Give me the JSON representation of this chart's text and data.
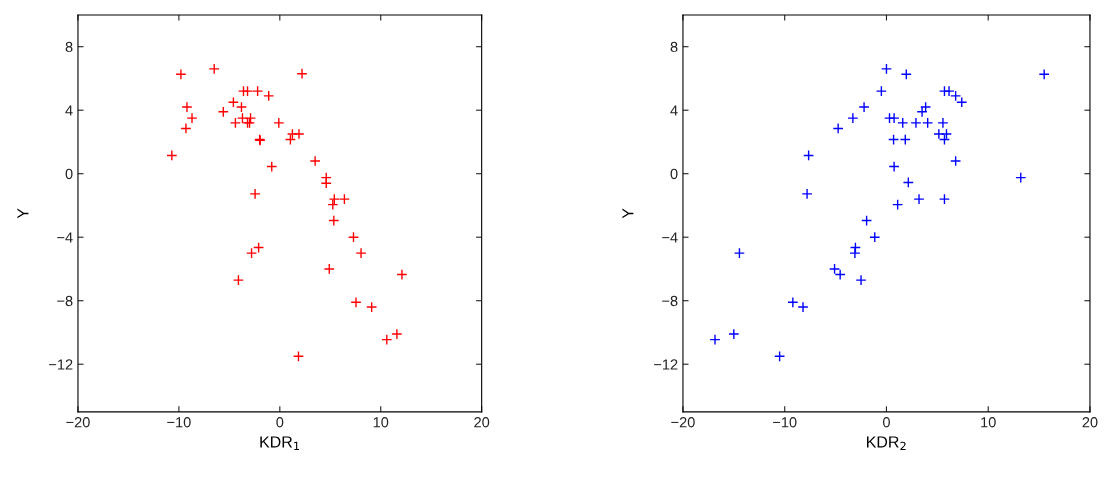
{
  "chart_data": [
    {
      "type": "scatter",
      "xlabel": "KDR$_{1}$",
      "ylabel": "Y",
      "marker": "cross",
      "grid": false,
      "legend": false,
      "xlim": [
        -20,
        20
      ],
      "ylim": [
        -15,
        10
      ],
      "xticks": [
        -20,
        -10,
        0,
        10,
        20
      ],
      "yticks": [
        -12,
        -8,
        -4,
        0,
        4,
        8
      ],
      "series": [
        {
          "color": "#ff0000",
          "x": [
            -9.8,
            -6.5,
            2.2,
            -3.6,
            -3.2,
            -2.2,
            -1.1,
            -9.2,
            -4.6,
            -3.8,
            -5.6,
            -8.7,
            -3.7,
            -2.9,
            -4.4,
            -3.2,
            -3.0,
            -0.1,
            -9.3,
            -2.0,
            -1.95,
            1.05,
            1.25,
            1.9,
            -10.7,
            -0.8,
            3.5,
            4.6,
            4.6,
            5.4,
            6.4,
            5.25,
            5.35,
            -2.45,
            7.3,
            8.05,
            -2.1,
            -2.8,
            4.9,
            -4.1,
            12.1,
            7.55,
            9.1,
            10.6,
            11.6,
            1.85
          ],
          "values": [
            6.26,
            6.6,
            6.3,
            5.2,
            5.2,
            5.2,
            4.9,
            4.2,
            4.5,
            4.2,
            3.9,
            3.5,
            3.5,
            3.5,
            3.2,
            3.2,
            3.2,
            3.2,
            2.85,
            2.15,
            2.1,
            2.15,
            2.5,
            2.5,
            1.15,
            0.45,
            0.8,
            -0.25,
            -0.6,
            -1.6,
            -1.6,
            -1.95,
            -2.95,
            -1.27,
            -4.0,
            -5.0,
            -4.65,
            -5.0,
            -6.0,
            -6.7,
            -6.35,
            -8.1,
            -8.4,
            -10.45,
            -10.1,
            -11.5
          ]
        }
      ]
    },
    {
      "type": "scatter",
      "xlabel": "KDR$_{2}$",
      "ylabel": "Y",
      "marker": "cross",
      "grid": false,
      "legend": false,
      "xlim": [
        -20,
        20
      ],
      "ylim": [
        -15,
        10
      ],
      "xticks": [
        -20,
        -10,
        0,
        10,
        20
      ],
      "yticks": [
        -12,
        -8,
        -4,
        0,
        4,
        8
      ],
      "series": [
        {
          "color": "#0000ff",
          "x": [
            0,
            1.95,
            15.5,
            -0.5,
            5.7,
            6.15,
            6.8,
            7.4,
            -2.2,
            3.85,
            3.5,
            -3.3,
            0.3,
            0.75,
            -4.75,
            1.6,
            2.9,
            4.05,
            5.55,
            0.7,
            1.85,
            5.15,
            5.9,
            5.7,
            -7.65,
            6.8,
            0.75,
            13.2,
            2.15,
            -7.8,
            3.2,
            5.7,
            1.1,
            -1.95,
            -1.15,
            -3.05,
            -3.1,
            -14.45,
            -5.1,
            -4.55,
            -2.5,
            -9.2,
            -8.2,
            -16.85,
            -15.0,
            -10.5
          ],
          "values": [
            6.6,
            6.26,
            6.26,
            5.2,
            5.2,
            5.2,
            4.9,
            4.5,
            4.2,
            4.2,
            3.9,
            3.5,
            3.5,
            3.5,
            2.85,
            3.2,
            3.2,
            3.2,
            3.2,
            2.15,
            2.15,
            2.5,
            2.5,
            2.15,
            1.15,
            0.8,
            0.45,
            -0.25,
            -0.55,
            -1.27,
            -1.6,
            -1.6,
            -1.95,
            -2.95,
            -4.0,
            -4.65,
            -5.0,
            -5.0,
            -6.0,
            -6.35,
            -6.7,
            -8.1,
            -8.4,
            -10.45,
            -10.1,
            -11.5
          ]
        }
      ]
    }
  ]
}
